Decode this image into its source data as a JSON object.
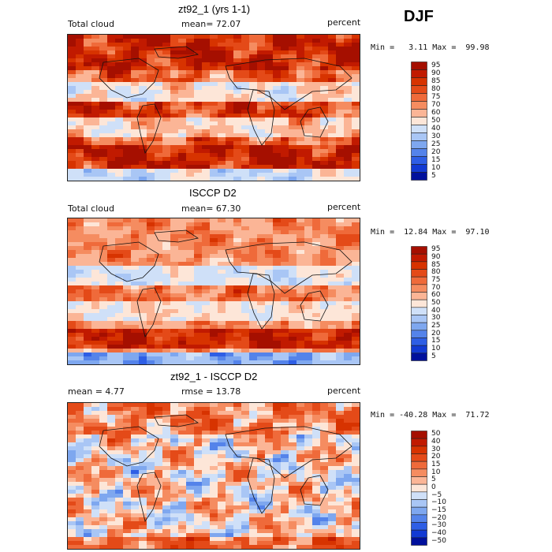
{
  "season": "DJF",
  "chart_data": [
    {
      "type": "heatmap",
      "title": "zt92_1 (yrs 1-1)",
      "left_label": "Total cloud",
      "center_label": "mean=  72.07",
      "right_label": "percent",
      "minmax": "Min =   3.11 Max =  99.98",
      "levels": [
        "95",
        "90",
        "85",
        "80",
        "75",
        "70",
        "60",
        "50",
        "40",
        "30",
        "25",
        "20",
        "15",
        "10",
        "5"
      ],
      "colors": [
        "#a50f00",
        "#c11a00",
        "#d73300",
        "#e44a18",
        "#ef6a3a",
        "#f58c60",
        "#fbb596",
        "#fde6d8",
        "#cfe0f8",
        "#a9c6f5",
        "#7ea7ef",
        "#5483ea",
        "#2e5ee5",
        "#123ad3",
        "#00109c"
      ],
      "pattern": "model"
    },
    {
      "type": "heatmap",
      "title": "ISCCP D2",
      "left_label": "Total cloud",
      "center_label": "mean=  67.30",
      "right_label": "percent",
      "minmax": "Min =  12.84 Max =  97.10",
      "levels": [
        "95",
        "90",
        "85",
        "80",
        "75",
        "70",
        "60",
        "50",
        "40",
        "30",
        "25",
        "20",
        "15",
        "10",
        "5"
      ],
      "colors": [
        "#a50f00",
        "#c11a00",
        "#d73300",
        "#e44a18",
        "#ef6a3a",
        "#f58c60",
        "#fbb596",
        "#fde6d8",
        "#cfe0f8",
        "#a9c6f5",
        "#7ea7ef",
        "#5483ea",
        "#2e5ee5",
        "#123ad3",
        "#00109c"
      ],
      "pattern": "obs"
    },
    {
      "type": "heatmap",
      "title": "zt92_1 - ISCCP D2",
      "left_label": "mean =    4.77",
      "center_label": "rmse =  13.78",
      "right_label": "percent",
      "minmax": "Min = -40.28 Max =  71.72",
      "levels": [
        "50",
        "40",
        "30",
        "20",
        "15",
        "10",
        "5",
        "0",
        "−5",
        "−10",
        "−15",
        "−20",
        "−30",
        "−40",
        "−50"
      ],
      "colors": [
        "#a50f00",
        "#c11a00",
        "#d73300",
        "#e44a18",
        "#ef6a3a",
        "#f58c60",
        "#fbb596",
        "#fde6d8",
        "#cfe0f8",
        "#a9c6f5",
        "#7ea7ef",
        "#5483ea",
        "#2e5ee5",
        "#123ad3",
        "#00109c"
      ],
      "pattern": "diff"
    }
  ]
}
